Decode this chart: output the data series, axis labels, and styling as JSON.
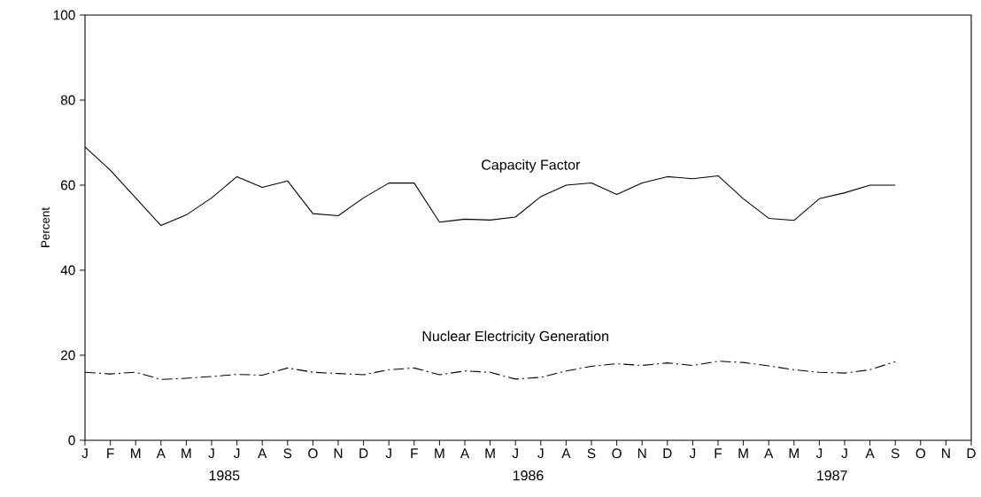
{
  "chart_data": {
    "type": "line",
    "ylabel": "Percent",
    "categories": [
      "J",
      "F",
      "M",
      "A",
      "M",
      "J",
      "J",
      "A",
      "S",
      "O",
      "N",
      "D",
      "J",
      "F",
      "M",
      "A",
      "M",
      "J",
      "J",
      "A",
      "S",
      "O",
      "N",
      "D",
      "J",
      "F",
      "M",
      "A",
      "M",
      "J",
      "J",
      "A",
      "S",
      "O",
      "N",
      "D"
    ],
    "series": [
      {
        "name": "Capacity Factor",
        "color": "#000000",
        "line_style": "solid",
        "values": [
          69,
          63.5,
          57,
          50.5,
          53,
          57,
          62,
          59.5,
          61,
          53.3,
          52.8,
          57,
          60.5,
          60.5,
          51.3,
          52,
          51.8,
          52.5,
          57.3,
          60,
          60.5,
          57.8,
          60.5,
          62,
          61.5,
          62.2,
          56.8,
          52.2,
          51.7,
          56.8,
          58.2,
          60,
          60,
          null,
          null,
          null
        ]
      },
      {
        "name": "Nuclear Electricity Generation",
        "color": "#000000",
        "line_style": "dashed",
        "values": [
          16,
          15.6,
          16,
          14.3,
          14.6,
          15,
          15.5,
          15.3,
          17,
          16,
          15.7,
          15.4,
          16.6,
          17,
          15.4,
          16.3,
          16,
          14.4,
          14.8,
          16.3,
          17.4,
          18,
          17.6,
          18.2,
          17.6,
          18.6,
          18.3,
          17.5,
          16.6,
          16,
          15.8,
          16.6,
          18.5,
          null,
          null,
          null
        ]
      }
    ],
    "ylim": [
      0,
      100
    ],
    "yticks": [
      0,
      20,
      40,
      60,
      80,
      100
    ],
    "grid": false,
    "marker": "none",
    "annotations": [
      "1985",
      "1986",
      "1987"
    ]
  }
}
